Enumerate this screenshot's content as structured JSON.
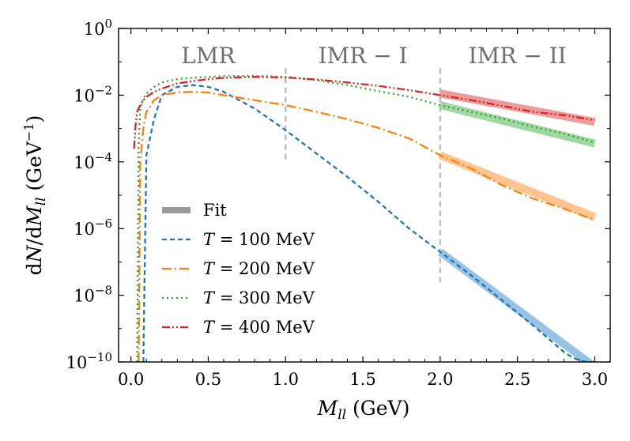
{
  "chart_data": {
    "type": "line",
    "title": "",
    "xlabel": "M_ll (GeV)",
    "ylabel": "dN/dM_ll (GeV^-1)",
    "xlim": [
      -0.08,
      3.1
    ],
    "ylim_log10": [
      -10,
      0
    ],
    "x_ticks": [
      0.0,
      0.5,
      1.0,
      1.5,
      2.0,
      2.5,
      3.0
    ],
    "x_tick_labels": [
      "0.0",
      "0.5",
      "1.0",
      "1.5",
      "2.0",
      "2.5",
      "3.0"
    ],
    "y_ticks_log10": [
      0,
      -2,
      -4,
      -6,
      -8,
      -10
    ],
    "y_tick_mantissa": "10",
    "y_tick_exponents": [
      "0",
      "-2",
      "-4",
      "-6",
      "-8",
      "-10"
    ],
    "xlabel_main": "M",
    "xlabel_sub": "ll",
    "xlabel_unit": " (GeV)",
    "ylabel_d1": "d",
    "ylabel_N": "N",
    "ylabel_slash": "/d",
    "ylabel_M": "M",
    "ylabel_sub": "ll",
    "ylabel_unit": " (GeV",
    "ylabel_exp": "−1",
    "ylabel_close": ")",
    "regions": [
      {
        "label": "LMR",
        "x": 0.5
      },
      {
        "label": "IMR − I",
        "x": 1.5
      },
      {
        "label": "IMR − II",
        "x": 2.5
      }
    ],
    "region_boundaries": [
      {
        "x": 1.0,
        "ymin_log10": -4.0,
        "ymax_log10": -1.2
      },
      {
        "x": 2.0,
        "ymin_log10": -7.6,
        "ymax_log10": -1.2
      }
    ],
    "legend_position": "lower-left",
    "fit_legend_label": "Fit",
    "fit_x_range": [
      2.0,
      3.0
    ],
    "series": [
      {
        "name": "T = 100 MeV",
        "legend_var": "T",
        "legend_rest": " = 100 MeV",
        "color": "#1f77b4",
        "fit_color": "#8fbde0",
        "dash": "6,4",
        "x": [
          0.08,
          0.1,
          0.15,
          0.2,
          0.3,
          0.4,
          0.5,
          0.6,
          0.8,
          1.0,
          1.2,
          1.4,
          1.6,
          1.8,
          2.0,
          2.2,
          2.4,
          2.6,
          2.7,
          2.75,
          2.8,
          2.85,
          2.9,
          2.95,
          3.0
        ],
        "log10_y": [
          -10,
          -3.8,
          -2.7,
          -2.0,
          -1.75,
          -1.7,
          -1.75,
          -1.9,
          -2.4,
          -3.05,
          -3.75,
          -4.45,
          -5.2,
          -6.0,
          -6.7,
          -7.4,
          -8.15,
          -8.9,
          -9.3,
          -9.5,
          -9.7,
          -9.85,
          -9.95,
          -10.0,
          -10.0
        ],
        "fit_log10_start": -6.7,
        "fit_log10_end": -10.15
      },
      {
        "name": "T = 200 MeV",
        "legend_var": "T",
        "legend_rest": " = 200 MeV",
        "color": "#ff7f0e",
        "fit_color": "#ffbf86",
        "dash": "12,4,2,4",
        "x": [
          0.05,
          0.06,
          0.08,
          0.1,
          0.15,
          0.2,
          0.3,
          0.4,
          0.5,
          0.6,
          0.8,
          1.0,
          1.2,
          1.4,
          1.6,
          1.8,
          2.0,
          2.2,
          2.4,
          2.6,
          2.8,
          3.0
        ],
        "log10_y": [
          -10,
          -4.0,
          -3.0,
          -2.5,
          -2.15,
          -2.0,
          -1.92,
          -1.9,
          -1.92,
          -2.0,
          -2.15,
          -2.3,
          -2.5,
          -2.72,
          -2.98,
          -3.3,
          -3.8,
          -4.2,
          -4.7,
          -5.1,
          -5.4,
          -5.75
        ],
        "fit_log10_start": -3.8,
        "fit_log10_end": -5.65
      },
      {
        "name": "T = 300 MeV",
        "legend_var": "T",
        "legend_rest": " = 300 MeV",
        "color": "#2ca02c",
        "fit_color": "#97d497",
        "dash": "2,4",
        "x": [
          0.04,
          0.05,
          0.06,
          0.08,
          0.1,
          0.15,
          0.2,
          0.3,
          0.4,
          0.5,
          0.6,
          0.8,
          1.0,
          1.2,
          1.4,
          1.6,
          1.8,
          2.0,
          2.2,
          2.4,
          2.6,
          2.8,
          3.0
        ],
        "log10_y": [
          -10,
          -3.5,
          -2.4,
          -2.1,
          -1.95,
          -1.75,
          -1.62,
          -1.52,
          -1.48,
          -1.45,
          -1.43,
          -1.42,
          -1.45,
          -1.55,
          -1.7,
          -1.88,
          -2.05,
          -2.3,
          -2.5,
          -2.7,
          -2.95,
          -3.15,
          -3.42
        ],
        "fit_log10_start": -2.3,
        "fit_log10_end": -3.45
      },
      {
        "name": "T = 400 MeV",
        "legend_var": "T",
        "legend_rest": " = 400 MeV",
        "color": "#d62728",
        "fit_color": "#eb9293",
        "dash": "10,3,2,3,2,3",
        "x": [
          0.02,
          0.03,
          0.04,
          0.06,
          0.08,
          0.1,
          0.15,
          0.2,
          0.3,
          0.4,
          0.5,
          0.6,
          0.8,
          1.0,
          1.2,
          1.4,
          1.6,
          1.8,
          2.0,
          2.2,
          2.4,
          2.6,
          2.8,
          3.0
        ],
        "log10_y": [
          -3.6,
          -2.9,
          -2.5,
          -2.3,
          -2.15,
          -2.05,
          -1.9,
          -1.8,
          -1.65,
          -1.58,
          -1.52,
          -1.48,
          -1.45,
          -1.47,
          -1.53,
          -1.62,
          -1.72,
          -1.85,
          -2.0,
          -2.15,
          -2.32,
          -2.5,
          -2.6,
          -2.75
        ],
        "fit_log10_start": -1.95,
        "fit_log10_end": -2.8
      }
    ]
  }
}
